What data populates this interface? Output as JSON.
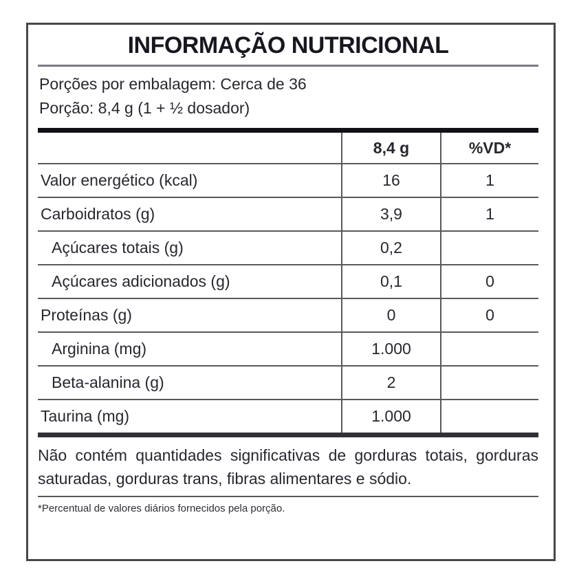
{
  "label": {
    "title": "INFORMAÇÃO NUTRICIONAL",
    "servings_per_package": "Porções por embalagem: Cerca de 36",
    "serving_size": "Porção: 8,4 g (1 + ½ dosador)",
    "table": {
      "columns": [
        "",
        "8,4 g",
        "%VD*"
      ],
      "rows": [
        {
          "label": "Valor energético (kcal)",
          "amount": "16",
          "vd": "1"
        },
        {
          "label": "Carboidratos (g)",
          "amount": "3,9",
          "vd": "1"
        },
        {
          "label": "Açúcares totais (g)",
          "amount": "0,2",
          "vd": ""
        },
        {
          "label": "Açúcares adicionados (g)",
          "amount": "0,1",
          "vd": "0"
        },
        {
          "label": "Proteínas (g)",
          "amount": "0",
          "vd": "0"
        },
        {
          "label": "Arginina (mg)",
          "amount": "1.000",
          "vd": ""
        },
        {
          "label": "Beta-alanina (g)",
          "amount": "2",
          "vd": ""
        },
        {
          "label": "Taurina (mg)",
          "amount": "1.000",
          "vd": ""
        }
      ]
    },
    "insignificant_note": "Não contém quantidades significativas de gorduras totais, gorduras saturadas, gorduras trans, fibras alimentares e sódio.",
    "footnote": "*Percentual de valores diários fornecidos pela porção.",
    "colors": {
      "text": "#27272f",
      "thin_rule": "#58585d",
      "thick_rule_top": "#121216",
      "thick_rule_bottom": "#303036",
      "outer_border": "#46464b",
      "background": "#ffffff"
    }
  }
}
